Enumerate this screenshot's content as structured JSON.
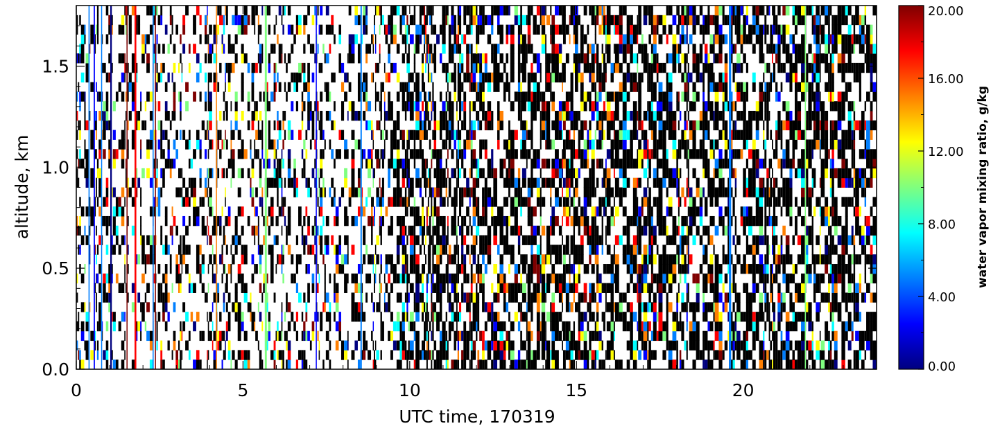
{
  "chart_data": {
    "type": "heatmap",
    "title": "",
    "xlabel": "UTC time, 170319",
    "ylabel": "altitude, km",
    "xlim": [
      0,
      24
    ],
    "ylim": [
      0,
      1.8
    ],
    "x_ticks": [
      {
        "value": 0,
        "label": "0"
      },
      {
        "value": 5,
        "label": "5"
      },
      {
        "value": 10,
        "label": "10"
      },
      {
        "value": 15,
        "label": "15"
      },
      {
        "value": 20,
        "label": "20"
      }
    ],
    "y_ticks": [
      {
        "value": 0.0,
        "label": "0.0"
      },
      {
        "value": 0.5,
        "label": "0.5"
      },
      {
        "value": 1.0,
        "label": "1.0"
      },
      {
        "value": 1.5,
        "label": "1.5"
      }
    ],
    "colorbar": {
      "label": "water vapor mixing ratio, g/kg",
      "range": [
        0,
        20
      ],
      "ticks": [
        {
          "value": 0,
          "label": "0.00"
        },
        {
          "value": 4,
          "label": "4.00"
        },
        {
          "value": 8,
          "label": "8.00"
        },
        {
          "value": 12,
          "label": "12.00"
        },
        {
          "value": 16,
          "label": "16.00"
        },
        {
          "value": 20,
          "label": "20.00"
        }
      ],
      "colormap": [
        "#00007f",
        "#0000ff",
        "#007fff",
        "#00ffff",
        "#7fff7f",
        "#ffff00",
        "#ff7f00",
        "#ff0000",
        "#7f0000"
      ]
    },
    "missing_color": "#000000",
    "grid": false,
    "field_description": "noisy per-profile water vapor retrievals; mostly missing (black) or masked (white) cells, higher density after ~9.5 UTC"
  }
}
